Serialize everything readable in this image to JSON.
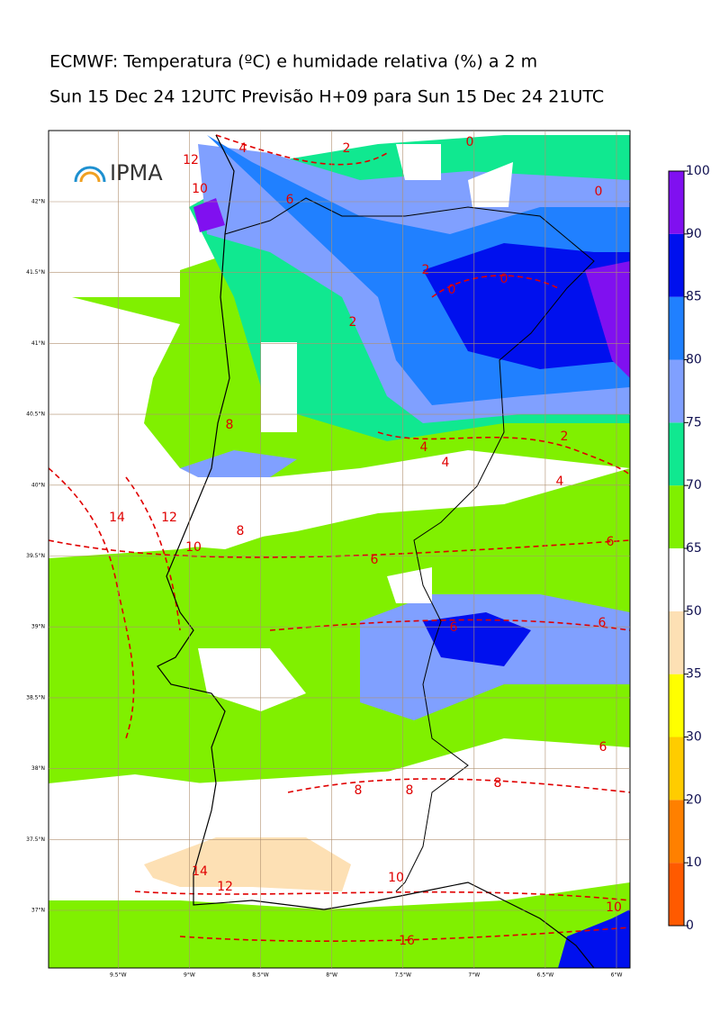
{
  "title": "ECMWF: Temperatura (ºC) e humidade relativa (%) a 2 m",
  "subtitle": "Sun 15 Dec 24 12UTC Previsão H+09 para Sun 15 Dec 24 21UTC",
  "logo": "IPMA",
  "lon_ticks": [
    {
      "value": -9.5,
      "label": "9.5°W"
    },
    {
      "value": -9,
      "label": "9°W"
    },
    {
      "value": -8.5,
      "label": "8.5°W"
    },
    {
      "value": -8,
      "label": "8°W"
    },
    {
      "value": -7.5,
      "label": "7.5°W"
    },
    {
      "value": -7,
      "label": "7°W"
    },
    {
      "value": -6.5,
      "label": "6.5°W"
    },
    {
      "value": -6,
      "label": "6°W"
    }
  ],
  "lat_ticks": [
    {
      "value": 42,
      "label": "42°N"
    },
    {
      "value": 41.5,
      "label": "41.5°N"
    },
    {
      "value": 41,
      "label": "41°N"
    },
    {
      "value": 40.5,
      "label": "40.5°N"
    },
    {
      "value": 40,
      "label": "40°N"
    },
    {
      "value": 39.5,
      "label": "39.5°N"
    },
    {
      "value": 39,
      "label": "39°N"
    },
    {
      "value": 38.5,
      "label": "38.5°N"
    },
    {
      "value": 38,
      "label": "38°N"
    },
    {
      "value": 37.5,
      "label": "37.5°N"
    },
    {
      "value": 37,
      "label": "37°N"
    }
  ],
  "colorbar": {
    "levels": [
      0,
      10,
      20,
      30,
      35,
      50,
      65,
      70,
      75,
      80,
      85,
      90,
      100
    ],
    "colors": [
      "#ff5a00",
      "#ff8000",
      "#ffcc00",
      "#ffff00",
      "#fde0b4",
      "#ffffff",
      "#80f000",
      "#10e890",
      "#80a0ff",
      "#2080ff",
      "#0010ee",
      "#8010f0"
    ]
  },
  "contour_labels": [
    "4",
    "2",
    "0",
    "0",
    "12",
    "10",
    "6",
    "2",
    "0",
    "0",
    "2",
    "8",
    "2",
    "4",
    "4",
    "4",
    "14",
    "12",
    "8",
    "10",
    "6",
    "6",
    "6",
    "6",
    "6",
    "8",
    "8",
    "8",
    "14",
    "12",
    "10",
    "10",
    "16"
  ]
}
